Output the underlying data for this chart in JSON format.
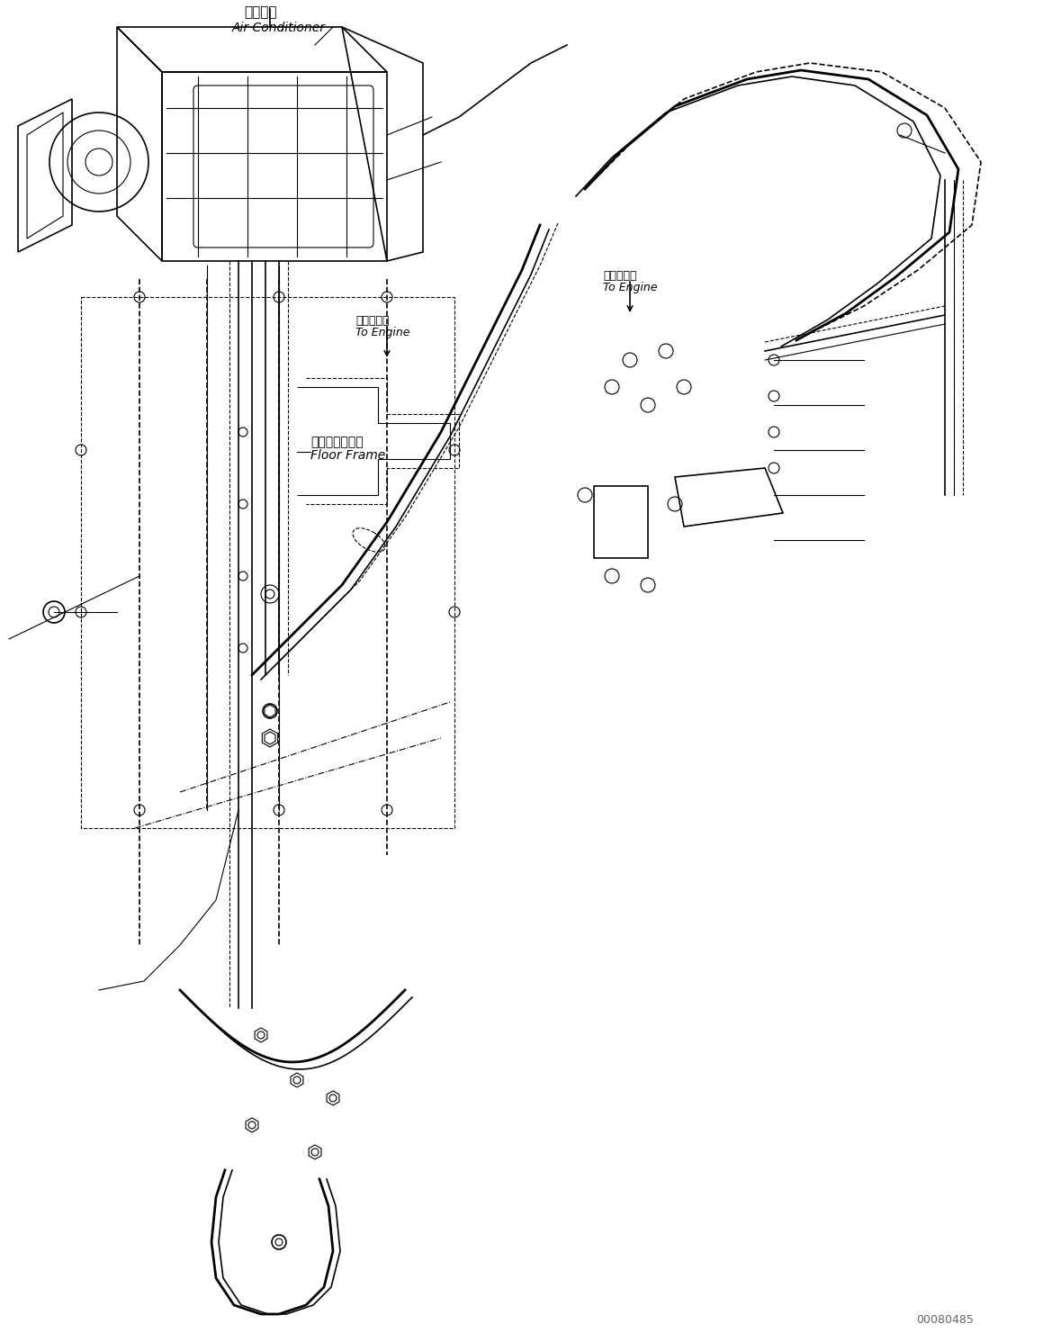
{
  "title": "",
  "background_color": "#ffffff",
  "line_color": "#000000",
  "label_air_conditioner_jp": "エアコン",
  "label_air_conditioner_en": "Air Conditioner",
  "label_floor_frame_jp": "フロアフレーム",
  "label_floor_frame_en": "Floor Frame",
  "label_to_engine_jp_1": "エンジンへ",
  "label_to_engine_en_1": "To Engine",
  "label_to_engine_jp_2": "エンジンへ",
  "label_to_engine_en_2": "To Engine",
  "watermark": "00080485",
  "fig_width": 11.59,
  "fig_height": 14.91
}
